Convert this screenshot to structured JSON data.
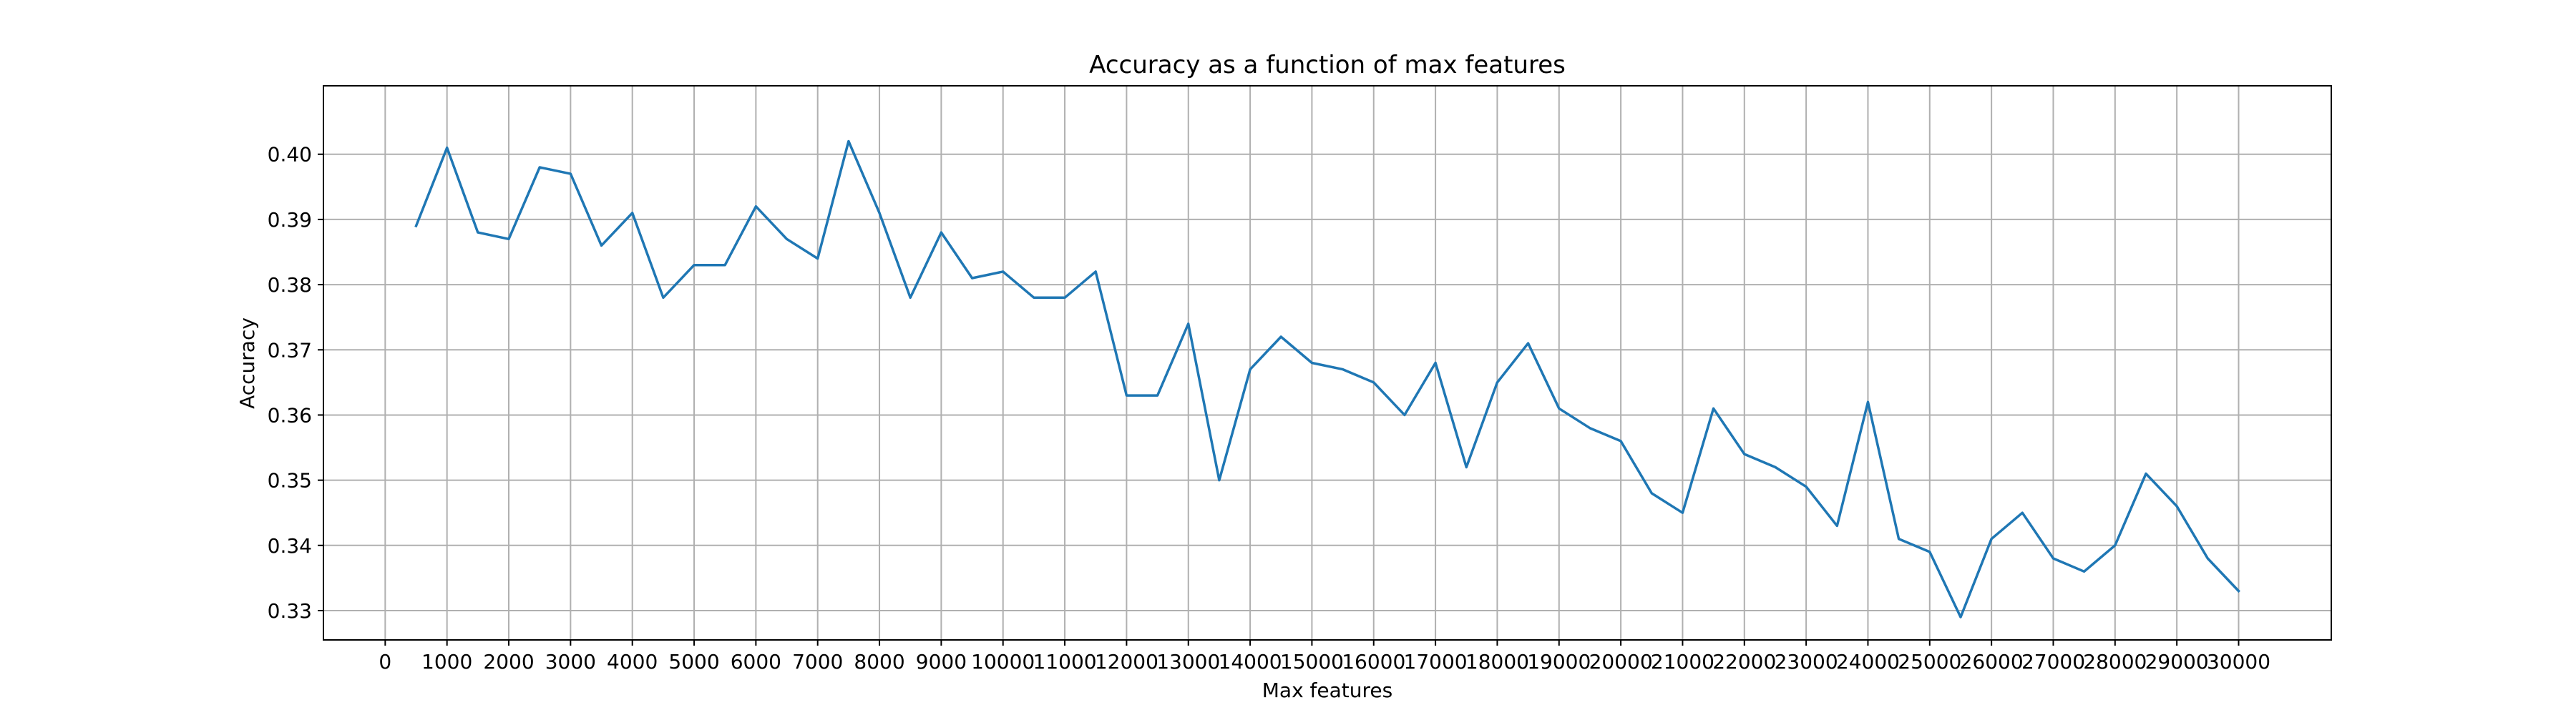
{
  "chart_data": {
    "type": "line",
    "title": "Accuracy as a function of max features",
    "xlabel": "Max features",
    "ylabel": "Accuracy",
    "xlim": [
      -1000,
      31500
    ],
    "ylim": [
      0.3255,
      0.4105
    ],
    "grid": true,
    "xticks": [
      0,
      1000,
      2000,
      3000,
      4000,
      5000,
      6000,
      7000,
      8000,
      9000,
      10000,
      11000,
      12000,
      13000,
      14000,
      15000,
      16000,
      17000,
      18000,
      19000,
      20000,
      21000,
      22000,
      23000,
      24000,
      25000,
      26000,
      27000,
      28000,
      29000,
      30000
    ],
    "yticks": [
      0.33,
      0.34,
      0.35,
      0.36,
      0.37,
      0.38,
      0.39,
      0.4
    ],
    "ytick_labels": [
      "0.33",
      "0.34",
      "0.35",
      "0.36",
      "0.37",
      "0.38",
      "0.39",
      "0.40"
    ],
    "series": [
      {
        "color": "#1f77b4",
        "x": [
          500,
          1000,
          1500,
          2000,
          2500,
          3000,
          3500,
          4000,
          4500,
          5000,
          5500,
          6000,
          6500,
          7000,
          7500,
          8000,
          8500,
          9000,
          9500,
          10000,
          10500,
          11000,
          11500,
          12000,
          12500,
          13000,
          13500,
          14000,
          14500,
          15000,
          15500,
          16000,
          16500,
          17000,
          17500,
          18000,
          18500,
          19000,
          19500,
          20000,
          20500,
          21000,
          21500,
          22000,
          22500,
          23000,
          23500,
          24000,
          24500,
          25000,
          25500,
          26000,
          26500,
          27000,
          27500,
          28000,
          28500,
          29000,
          29500,
          30000
        ],
        "y": [
          0.389,
          0.401,
          0.388,
          0.387,
          0.398,
          0.397,
          0.386,
          0.391,
          0.378,
          0.383,
          0.383,
          0.392,
          0.387,
          0.384,
          0.402,
          0.391,
          0.378,
          0.388,
          0.381,
          0.382,
          0.378,
          0.378,
          0.382,
          0.363,
          0.363,
          0.374,
          0.35,
          0.367,
          0.372,
          0.368,
          0.367,
          0.365,
          0.36,
          0.368,
          0.352,
          0.365,
          0.371,
          0.361,
          0.358,
          0.356,
          0.348,
          0.345,
          0.361,
          0.354,
          0.352,
          0.349,
          0.343,
          0.362,
          0.341,
          0.339,
          0.329,
          0.341,
          0.345,
          0.338,
          0.336,
          0.34,
          0.351,
          0.346,
          0.338,
          0.333
        ]
      }
    ]
  }
}
